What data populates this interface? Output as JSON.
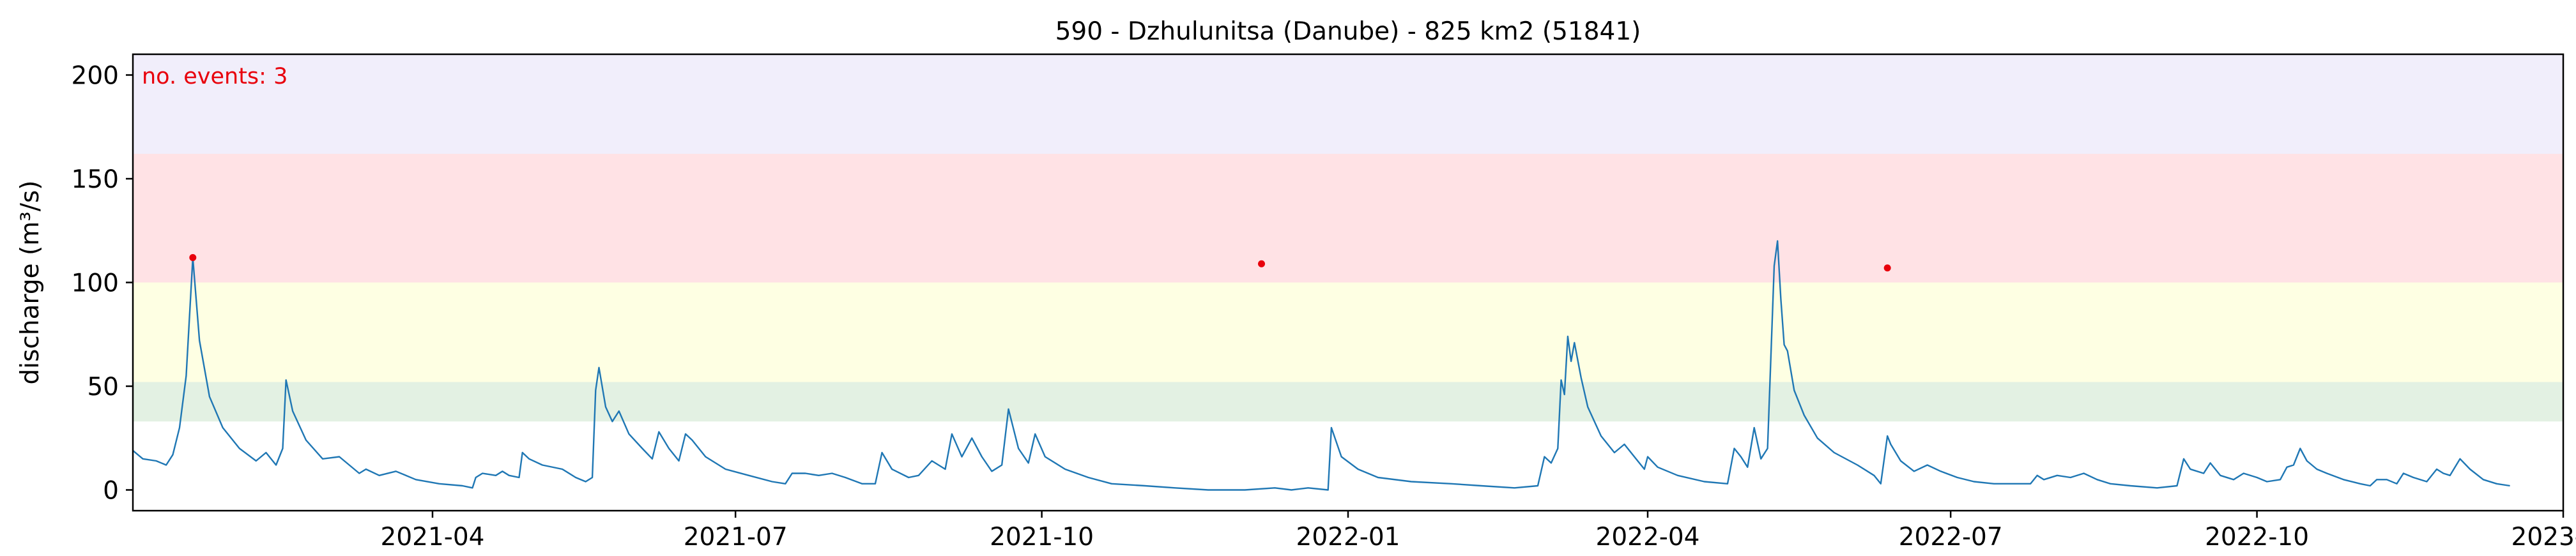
{
  "chart_data": {
    "type": "line",
    "title": "590 - Dzhulunitsa (Danube) - 825 km2 (51841)",
    "xlabel": "",
    "ylabel": "discharge (m³/s)",
    "xlim": [
      "2021-01-01",
      "2023-01-01"
    ],
    "ylim": [
      -10,
      210
    ],
    "x_ticks": [
      "2021-04-01",
      "2021-07-01",
      "2021-10-01",
      "2022-01-01",
      "2022-04-01",
      "2022-07-01",
      "2022-10-01",
      "2023-01-01"
    ],
    "x_tick_labels": [
      "2021-04",
      "2021-07",
      "2021-10",
      "2022-01",
      "2022-04",
      "2022-07",
      "2022-10",
      "2023-01"
    ],
    "y_ticks": [
      0,
      50,
      100,
      150,
      200
    ],
    "y_tick_labels": [
      "0",
      "50",
      "100",
      "150",
      "200"
    ],
    "grid": false,
    "annotation": "no. events: 3",
    "annotation_color": "#e8000b",
    "bands": [
      {
        "from": 33,
        "to": 52,
        "color": "#e3f1e3"
      },
      {
        "from": 52,
        "to": 100,
        "color": "#feffe3"
      },
      {
        "from": 100,
        "to": 162,
        "color": "#ffe2e5"
      },
      {
        "from": 162,
        "to": 210,
        "color": "#f1eefb"
      }
    ],
    "series": [
      {
        "color": "#1f77b4",
        "points": [
          [
            "2021-01-01",
            19
          ],
          [
            "2021-01-04",
            15
          ],
          [
            "2021-01-08",
            14
          ],
          [
            "2021-01-11",
            12
          ],
          [
            "2021-01-13",
            17
          ],
          [
            "2021-01-15",
            30
          ],
          [
            "2021-01-17",
            55
          ],
          [
            "2021-01-19",
            112
          ],
          [
            "2021-01-21",
            72
          ],
          [
            "2021-01-24",
            45
          ],
          [
            "2021-01-28",
            30
          ],
          [
            "2021-02-02",
            20
          ],
          [
            "2021-02-07",
            14
          ],
          [
            "2021-02-10",
            18
          ],
          [
            "2021-02-13",
            12
          ],
          [
            "2021-02-15",
            20
          ],
          [
            "2021-02-16",
            53
          ],
          [
            "2021-02-18",
            38
          ],
          [
            "2021-02-22",
            24
          ],
          [
            "2021-02-27",
            15
          ],
          [
            "2021-03-04",
            16
          ],
          [
            "2021-03-07",
            12
          ],
          [
            "2021-03-10",
            8
          ],
          [
            "2021-03-12",
            10
          ],
          [
            "2021-03-16",
            7
          ],
          [
            "2021-03-21",
            9
          ],
          [
            "2021-03-27",
            5
          ],
          [
            "2021-04-03",
            3
          ],
          [
            "2021-04-10",
            2
          ],
          [
            "2021-04-13",
            1
          ],
          [
            "2021-04-14",
            6
          ],
          [
            "2021-04-16",
            8
          ],
          [
            "2021-04-20",
            7
          ],
          [
            "2021-04-22",
            9
          ],
          [
            "2021-04-24",
            7
          ],
          [
            "2021-04-27",
            6
          ],
          [
            "2021-04-28",
            18
          ],
          [
            "2021-04-30",
            15
          ],
          [
            "2021-05-04",
            12
          ],
          [
            "2021-05-10",
            10
          ],
          [
            "2021-05-14",
            6
          ],
          [
            "2021-05-17",
            4
          ],
          [
            "2021-05-19",
            6
          ],
          [
            "2021-05-20",
            48
          ],
          [
            "2021-05-21",
            59
          ],
          [
            "2021-05-23",
            40
          ],
          [
            "2021-05-25",
            33
          ],
          [
            "2021-05-27",
            38
          ],
          [
            "2021-05-30",
            27
          ],
          [
            "2021-06-03",
            20
          ],
          [
            "2021-06-06",
            15
          ],
          [
            "2021-06-08",
            28
          ],
          [
            "2021-06-11",
            20
          ],
          [
            "2021-06-14",
            14
          ],
          [
            "2021-06-16",
            27
          ],
          [
            "2021-06-18",
            24
          ],
          [
            "2021-06-22",
            16
          ],
          [
            "2021-06-28",
            10
          ],
          [
            "2021-07-05",
            7
          ],
          [
            "2021-07-12",
            4
          ],
          [
            "2021-07-16",
            3
          ],
          [
            "2021-07-18",
            8
          ],
          [
            "2021-07-22",
            8
          ],
          [
            "2021-07-26",
            7
          ],
          [
            "2021-07-30",
            8
          ],
          [
            "2021-08-03",
            6
          ],
          [
            "2021-08-08",
            3
          ],
          [
            "2021-08-12",
            3
          ],
          [
            "2021-08-14",
            18
          ],
          [
            "2021-08-17",
            10
          ],
          [
            "2021-08-22",
            6
          ],
          [
            "2021-08-25",
            7
          ],
          [
            "2021-08-29",
            14
          ],
          [
            "2021-09-02",
            10
          ],
          [
            "2021-09-04",
            27
          ],
          [
            "2021-09-07",
            16
          ],
          [
            "2021-09-10",
            25
          ],
          [
            "2021-09-13",
            16
          ],
          [
            "2021-09-16",
            9
          ],
          [
            "2021-09-19",
            12
          ],
          [
            "2021-09-21",
            39
          ],
          [
            "2021-09-24",
            20
          ],
          [
            "2021-09-27",
            13
          ],
          [
            "2021-09-29",
            27
          ],
          [
            "2021-10-02",
            16
          ],
          [
            "2021-10-08",
            10
          ],
          [
            "2021-10-15",
            6
          ],
          [
            "2021-10-22",
            3
          ],
          [
            "2021-11-01",
            2
          ],
          [
            "2021-11-10",
            1
          ],
          [
            "2021-11-20",
            0
          ],
          [
            "2021-12-01",
            0
          ],
          [
            "2021-12-10",
            1
          ],
          [
            "2021-12-15",
            0
          ],
          [
            "2021-12-20",
            1
          ],
          [
            "2021-12-26",
            0
          ],
          [
            "2021-12-27",
            30
          ],
          [
            "2021-12-30",
            16
          ],
          [
            "2022-01-04",
            10
          ],
          [
            "2022-01-10",
            6
          ],
          [
            "2022-01-20",
            4
          ],
          [
            "2022-02-01",
            3
          ],
          [
            "2022-02-10",
            2
          ],
          [
            "2022-02-20",
            1
          ],
          [
            "2022-02-27",
            2
          ],
          [
            "2022-03-01",
            16
          ],
          [
            "2022-03-03",
            13
          ],
          [
            "2022-03-05",
            20
          ],
          [
            "2022-03-06",
            53
          ],
          [
            "2022-03-07",
            46
          ],
          [
            "2022-03-08",
            74
          ],
          [
            "2022-03-09",
            62
          ],
          [
            "2022-03-10",
            71
          ],
          [
            "2022-03-12",
            54
          ],
          [
            "2022-03-14",
            40
          ],
          [
            "2022-03-18",
            26
          ],
          [
            "2022-03-22",
            18
          ],
          [
            "2022-03-25",
            22
          ],
          [
            "2022-03-28",
            16
          ],
          [
            "2022-03-31",
            10
          ],
          [
            "2022-04-01",
            16
          ],
          [
            "2022-04-04",
            11
          ],
          [
            "2022-04-10",
            7
          ],
          [
            "2022-04-18",
            4
          ],
          [
            "2022-04-25",
            3
          ],
          [
            "2022-04-27",
            20
          ],
          [
            "2022-04-29",
            16
          ],
          [
            "2022-05-01",
            11
          ],
          [
            "2022-05-03",
            30
          ],
          [
            "2022-05-05",
            15
          ],
          [
            "2022-05-07",
            20
          ],
          [
            "2022-05-09",
            108
          ],
          [
            "2022-05-10",
            120
          ],
          [
            "2022-05-11",
            92
          ],
          [
            "2022-05-12",
            70
          ],
          [
            "2022-05-13",
            67
          ],
          [
            "2022-05-15",
            48
          ],
          [
            "2022-05-18",
            36
          ],
          [
            "2022-05-22",
            25
          ],
          [
            "2022-05-27",
            18
          ],
          [
            "2022-06-03",
            12
          ],
          [
            "2022-06-08",
            7
          ],
          [
            "2022-06-10",
            3
          ],
          [
            "2022-06-12",
            26
          ],
          [
            "2022-06-13",
            22
          ],
          [
            "2022-06-16",
            14
          ],
          [
            "2022-06-20",
            9
          ],
          [
            "2022-06-24",
            12
          ],
          [
            "2022-06-28",
            9
          ],
          [
            "2022-07-03",
            6
          ],
          [
            "2022-07-08",
            4
          ],
          [
            "2022-07-14",
            3
          ],
          [
            "2022-07-20",
            3
          ],
          [
            "2022-07-25",
            3
          ],
          [
            "2022-07-27",
            7
          ],
          [
            "2022-07-29",
            5
          ],
          [
            "2022-08-02",
            7
          ],
          [
            "2022-08-06",
            6
          ],
          [
            "2022-08-10",
            8
          ],
          [
            "2022-08-14",
            5
          ],
          [
            "2022-08-18",
            3
          ],
          [
            "2022-08-24",
            2
          ],
          [
            "2022-09-01",
            1
          ],
          [
            "2022-09-07",
            2
          ],
          [
            "2022-09-09",
            15
          ],
          [
            "2022-09-11",
            10
          ],
          [
            "2022-09-15",
            8
          ],
          [
            "2022-09-17",
            13
          ],
          [
            "2022-09-20",
            7
          ],
          [
            "2022-09-24",
            5
          ],
          [
            "2022-09-27",
            8
          ],
          [
            "2022-10-01",
            6
          ],
          [
            "2022-10-04",
            4
          ],
          [
            "2022-10-08",
            5
          ],
          [
            "2022-10-10",
            11
          ],
          [
            "2022-10-12",
            12
          ],
          [
            "2022-10-14",
            20
          ],
          [
            "2022-10-16",
            14
          ],
          [
            "2022-10-19",
            10
          ],
          [
            "2022-10-22",
            8
          ],
          [
            "2022-10-27",
            5
          ],
          [
            "2022-11-01",
            3
          ],
          [
            "2022-11-04",
            2
          ],
          [
            "2022-11-06",
            5
          ],
          [
            "2022-11-09",
            5
          ],
          [
            "2022-11-12",
            3
          ],
          [
            "2022-11-14",
            8
          ],
          [
            "2022-11-17",
            6
          ],
          [
            "2022-11-21",
            4
          ],
          [
            "2022-11-24",
            10
          ],
          [
            "2022-11-26",
            8
          ],
          [
            "2022-11-28",
            7
          ],
          [
            "2022-12-01",
            15
          ],
          [
            "2022-12-04",
            10
          ],
          [
            "2022-12-08",
            5
          ],
          [
            "2022-12-12",
            3
          ],
          [
            "2022-12-16",
            2
          ]
        ]
      }
    ],
    "events": [
      {
        "x": "2021-01-19",
        "y": 112
      },
      {
        "x": "2021-12-06",
        "y": 109
      },
      {
        "x": "2022-06-12",
        "y": 107
      }
    ],
    "events_color": "#e8000b"
  }
}
